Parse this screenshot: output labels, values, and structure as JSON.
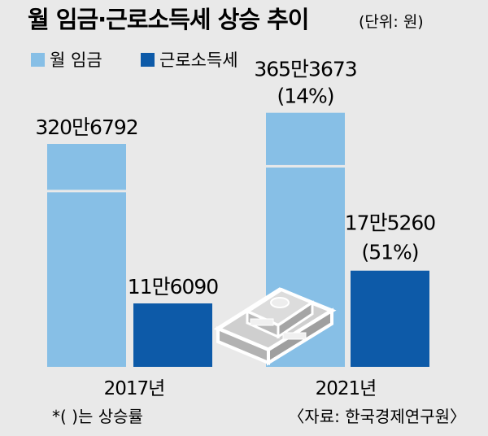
{
  "chart_data": {
    "type": "bar",
    "title": "월 임금·근로소득세 상승 추이",
    "unit": "(단위: 원)",
    "categories": [
      "2017년",
      "2021년"
    ],
    "series": [
      {
        "name": "월 임금",
        "color": "#87bfe6",
        "values": [
          3206792,
          3653673
        ],
        "labels": [
          "320만6792",
          "365만3673"
        ],
        "growth": [
          null,
          "(14%)"
        ]
      },
      {
        "name": "근로소득세",
        "color": "#0d5aa8",
        "values": [
          116090,
          175260
        ],
        "labels": [
          "11만6090",
          "17만5260"
        ],
        "growth": [
          null,
          "(51%)"
        ]
      }
    ],
    "legend_position": "top-left",
    "footnote": "*(  )는 상승률",
    "source": "〈자료: 한국경제연구원〉"
  },
  "decoration": {
    "illustration": "money-stack-icon"
  }
}
